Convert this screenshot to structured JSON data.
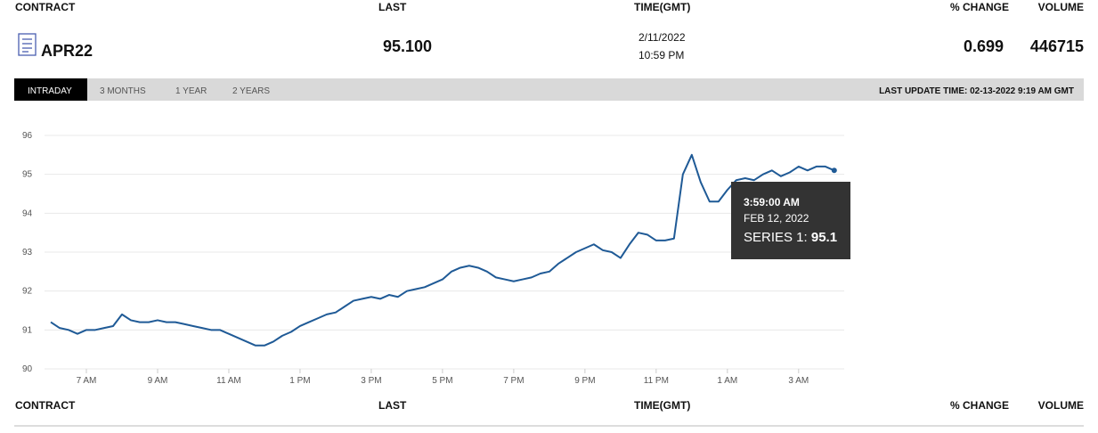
{
  "table": {
    "header": [
      "CONTRACT",
      "LAST",
      "TIME(GMT)",
      "% CHANGE",
      "VOLUME"
    ],
    "row": {
      "contract": "APR22",
      "last": "95.100",
      "date": "2/11/2022",
      "time": "10:59 PM",
      "change": "0.699",
      "volume": "446715"
    }
  },
  "tabs": [
    "INTRADAY",
    "3 MONTHS",
    "1 YEAR",
    "2 YEARS"
  ],
  "last_update": "LAST UPDATE TIME: 02-13-2022 9:19 AM GMT",
  "chart_data": {
    "type": "line",
    "color": "#1f5a96",
    "grid": true,
    "xlim": [
      6,
      28.08
    ],
    "xticks": [
      {
        "value": 7,
        "label": "7 AM"
      },
      {
        "value": 9,
        "label": "9 AM"
      },
      {
        "value": 11,
        "label": "11 AM"
      },
      {
        "value": 13,
        "label": "1 PM"
      },
      {
        "value": 15,
        "label": "3 PM"
      },
      {
        "value": 17,
        "label": "5 PM"
      },
      {
        "value": 19,
        "label": "7 PM"
      },
      {
        "value": 21,
        "label": "9 PM"
      },
      {
        "value": 23,
        "label": "11 PM"
      },
      {
        "value": 25,
        "label": "1 AM"
      },
      {
        "value": 27,
        "label": "3 AM"
      }
    ],
    "ylim": [
      90,
      96
    ],
    "yticks": [
      90,
      91,
      92,
      93,
      94,
      95,
      96
    ],
    "x": [
      6,
      6.25,
      6.5,
      6.75,
      7,
      7.25,
      7.5,
      7.75,
      8,
      8.25,
      8.5,
      8.75,
      9,
      9.25,
      9.5,
      9.75,
      10,
      10.25,
      10.5,
      10.75,
      11,
      11.25,
      11.5,
      11.75,
      12,
      12.25,
      12.5,
      12.75,
      13,
      13.25,
      13.5,
      13.75,
      14,
      14.25,
      14.5,
      14.75,
      15,
      15.25,
      15.5,
      15.75,
      16,
      16.25,
      16.5,
      16.75,
      17,
      17.25,
      17.5,
      17.75,
      18,
      18.25,
      18.5,
      18.75,
      19,
      19.25,
      19.5,
      19.75,
      20,
      20.25,
      20.5,
      20.75,
      21,
      21.25,
      21.5,
      21.75,
      22,
      22.25,
      22.5,
      22.75,
      23,
      23.25,
      23.5,
      23.75,
      24,
      24.25,
      24.5,
      24.75,
      25,
      25.25,
      25.5,
      25.75,
      26,
      26.25,
      26.5,
      26.75,
      27,
      27.25,
      27.5,
      27.75,
      28
    ],
    "values": [
      91.2,
      91.05,
      91.0,
      90.9,
      91.0,
      91.0,
      91.05,
      91.1,
      91.4,
      91.25,
      91.2,
      91.2,
      91.25,
      91.2,
      91.2,
      91.15,
      91.1,
      91.05,
      91.0,
      91.0,
      90.9,
      90.8,
      90.7,
      90.6,
      90.6,
      90.7,
      90.85,
      90.95,
      91.1,
      91.2,
      91.3,
      91.4,
      91.45,
      91.6,
      91.75,
      91.8,
      91.85,
      91.8,
      91.9,
      91.85,
      92.0,
      92.05,
      92.1,
      92.2,
      92.3,
      92.5,
      92.6,
      92.65,
      92.6,
      92.5,
      92.35,
      92.3,
      92.25,
      92.3,
      92.35,
      92.45,
      92.5,
      92.7,
      92.85,
      93.0,
      93.1,
      93.2,
      93.05,
      93.0,
      92.85,
      93.2,
      93.5,
      93.45,
      93.3,
      93.3,
      93.35,
      95.0,
      95.5,
      94.8,
      94.3,
      94.3,
      94.6,
      94.85,
      94.9,
      94.85,
      95.0,
      95.1,
      94.95,
      95.05,
      95.2,
      95.1,
      95.2,
      95.2,
      95.1
    ]
  },
  "tooltip": {
    "time": "3:59:00 AM",
    "date": "FEB 12, 2022",
    "series": "SERIES 1:",
    "value": "95.1"
  },
  "footer_header": [
    "CONTRACT",
    "LAST",
    "TIME(GMT)",
    "% CHANGE",
    "VOLUME"
  ]
}
